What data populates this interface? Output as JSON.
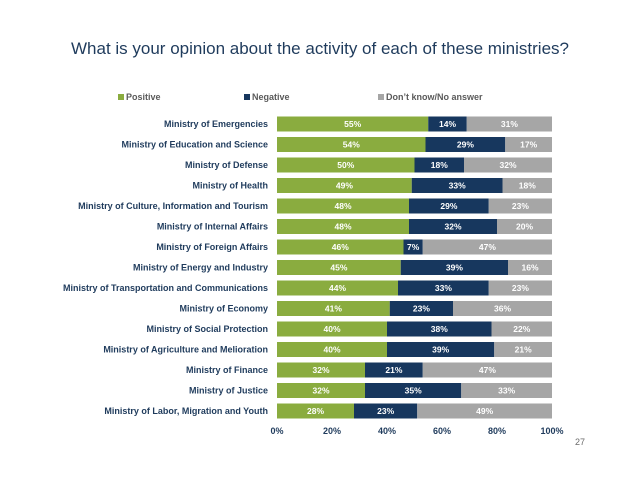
{
  "page_number": "27",
  "chart_data": {
    "type": "bar",
    "orientation": "horizontal",
    "stacked": true,
    "title": "What is your opinion about the activity of each of these ministries?",
    "categories": [
      "Ministry of Emergencies",
      "Ministry of Education and Science",
      "Ministry of Defense",
      "Ministry of Health",
      "Ministry of Culture, Information and Tourism",
      "Ministry of Internal Affairs",
      "Ministry of Foreign Affairs",
      "Ministry of Energy and Industry",
      "Ministry of Transportation and Communications",
      "Ministry of Economy",
      "Ministry of Social Protection",
      "Ministry of Agriculture and Melioration",
      "Ministry of Finance",
      "Ministry of Justice",
      "Ministry of Labor, Migration and Youth"
    ],
    "series": [
      {
        "name": "Positive",
        "color": "#8aac3f",
        "values": [
          55,
          54,
          50,
          49,
          48,
          48,
          46,
          45,
          44,
          41,
          40,
          40,
          32,
          32,
          28
        ]
      },
      {
        "name": "Negative",
        "color": "#17375e",
        "values": [
          14,
          29,
          18,
          33,
          29,
          32,
          7,
          39,
          33,
          23,
          38,
          39,
          21,
          35,
          23
        ]
      },
      {
        "name": "Don’t know/No answer",
        "color": "#a6a6a6",
        "values": [
          31,
          17,
          32,
          18,
          23,
          20,
          47,
          16,
          23,
          36,
          22,
          21,
          47,
          33,
          49
        ]
      }
    ],
    "x_ticks": [
      "0%",
      "20%",
      "40%",
      "60%",
      "80%",
      "100%"
    ],
    "xlim": [
      0,
      100
    ],
    "value_suffix": "%",
    "legend_position": "top-left",
    "grid": false
  }
}
